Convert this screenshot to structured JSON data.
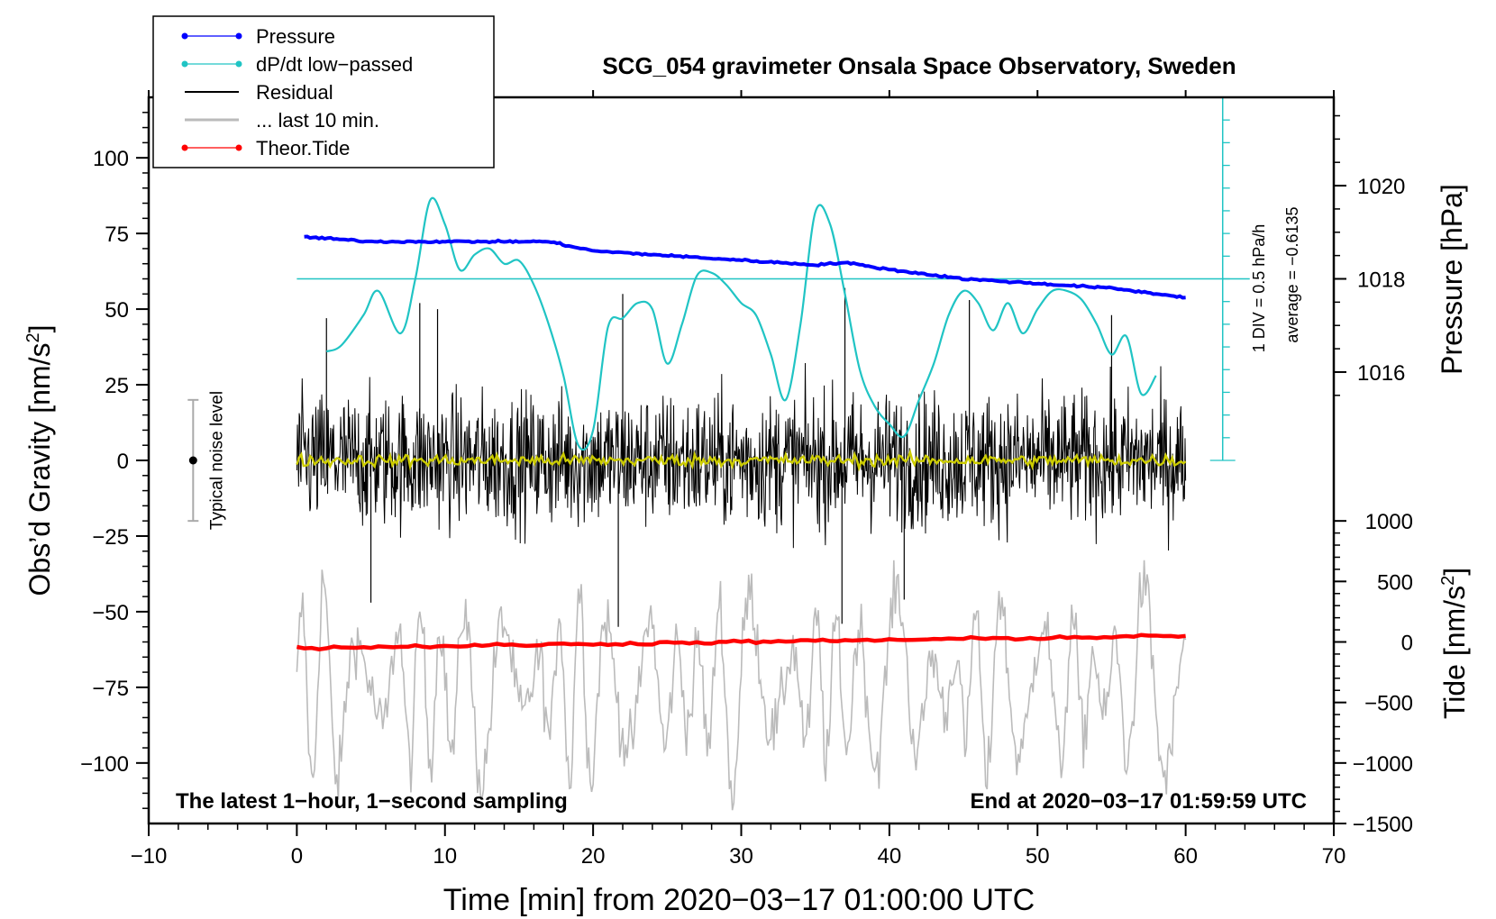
{
  "chart_data": {
    "type": "line",
    "title": "SCG_054 gravimeter Onsala Space Observatory, Sweden",
    "xlabel": "Time [min] from 2020−03−17 01:00:00 UTC",
    "ylabel_left": "Obs’d Gravity [nm/s",
    "ylabel_left_sup": "2",
    "ylabel_left_close": "]",
    "ylabel_right_pressure": "Pressure [hPa]",
    "ylabel_right_tide": "Tide [nm/s",
    "ylabel_right_tide_sup": "2",
    "ylabel_right_tide_close": "]",
    "xlim": [
      -10,
      70
    ],
    "ylim_gravity": [
      -120,
      120
    ],
    "xticks": [
      "−10",
      "0",
      "10",
      "20",
      "30",
      "40",
      "50",
      "60",
      "70"
    ],
    "xtick_values": [
      -10,
      0,
      10,
      20,
      30,
      40,
      50,
      60,
      70
    ],
    "yticks_gravity": [
      "100",
      "75",
      "50",
      "25",
      "0",
      "−25",
      "−50",
      "−75",
      "−100"
    ],
    "ytick_values_gravity": [
      100,
      75,
      50,
      25,
      0,
      -25,
      -50,
      -75,
      -100
    ],
    "pressure_axis": {
      "ticks": [
        "1020",
        "1018",
        "1016"
      ],
      "tick_values": [
        1020,
        1018,
        1016
      ],
      "ref_gravity": 60,
      "ref_hpa": 1018,
      "gravity_per_hpa": 15.4
    },
    "tide_axis": {
      "ticks": [
        "1000",
        "500",
        "0",
        "−500",
        "−1000",
        "−1500"
      ],
      "tick_values": [
        1000,
        500,
        0,
        -500,
        -1000,
        -1500
      ],
      "ref_gravity": -60,
      "gravity_per_unit": 0.04
    },
    "dpdt_scale": {
      "label1": "1 DIV = 0.5 hPa/h",
      "label2": "average = −0.6135",
      "x": 62.5,
      "y_top": 120,
      "y_bottom": 0,
      "divisions": 16,
      "baseline_gravity": 60
    },
    "noise_bar": {
      "label": "Typical noise level",
      "x": -7,
      "center": 0,
      "half_range": 20
    },
    "legend": [
      {
        "label": "Pressure",
        "color": "#0000ff",
        "marker": true
      },
      {
        "label": "dP/dt low−passed",
        "color": "#20c4c4",
        "marker": true
      },
      {
        "label": "Residual",
        "color": "#000000",
        "marker": false
      },
      {
        "label": "... last 10 min.",
        "color": "#bbbbbb",
        "marker": false
      },
      {
        "label": "Theor.Tide",
        "color": "#ff0000",
        "marker": true
      }
    ],
    "annotation_left": "The latest 1−hour, 1−second sampling",
    "annotation_right": "End at 2020−03−17 01:59:59 UTC",
    "series": [
      {
        "name": "Pressure",
        "color": "#0000ff",
        "x": [
          0.5,
          5,
          10,
          15,
          17,
          20,
          25,
          30,
          35,
          37,
          40,
          45,
          50,
          55,
          60
        ],
        "values": [
          1018.9,
          1018.8,
          1018.8,
          1018.8,
          1018.8,
          1018.6,
          1018.5,
          1018.4,
          1018.3,
          1018.35,
          1018.2,
          1018.0,
          1017.9,
          1017.8,
          1017.6
        ]
      },
      {
        "name": "dP/dt low-passed",
        "color": "#20c4c4",
        "x": [
          2,
          3,
          4.5,
          5.5,
          7,
          8,
          9,
          10,
          11,
          12,
          13,
          14,
          15,
          16,
          17,
          18,
          19,
          20,
          21,
          22,
          23,
          24,
          25,
          26,
          27,
          28,
          29,
          30,
          31,
          32,
          33,
          34,
          35,
          36,
          37,
          38,
          39,
          40,
          41,
          42,
          43,
          44,
          45,
          46,
          47,
          48,
          49,
          50,
          51,
          52,
          53,
          54,
          55,
          56,
          57,
          58
        ],
        "values": [
          36,
          38,
          48,
          56,
          42,
          60,
          86,
          78,
          63,
          68,
          70,
          65,
          66,
          58,
          45,
          28,
          5,
          10,
          44,
          47,
          52,
          50,
          32,
          45,
          61,
          62,
          58,
          52,
          48,
          35,
          20,
          45,
          82,
          78,
          55,
          30,
          18,
          12,
          8,
          20,
          32,
          48,
          56,
          52,
          43,
          52,
          42,
          50,
          56,
          56,
          53,
          45,
          35,
          41,
          22,
          28
        ]
      },
      {
        "name": "Residual",
        "color": "#000000",
        "x_range": [
          0,
          60
        ],
        "baseline": 0,
        "typical_amplitude": 20,
        "max_spikes": [
          {
            "x": 2.0,
            "value": 47
          },
          {
            "x": 8.3,
            "value": 52
          },
          {
            "x": 9.5,
            "value": 50
          },
          {
            "x": 22.0,
            "value": 55
          },
          {
            "x": 37.0,
            "value": 57
          },
          {
            "x": 45.4,
            "value": 53
          },
          {
            "x": 55.0,
            "value": 48
          },
          {
            "x": 21.7,
            "value": -55
          },
          {
            "x": 36.8,
            "value": -54
          },
          {
            "x": 41.0,
            "value": -46
          },
          {
            "x": 5.0,
            "value": -47
          }
        ]
      },
      {
        "name": "Residual smoothed",
        "color": "#cccc00",
        "x_range": [
          0,
          60
        ],
        "baseline": 0,
        "amplitude": 2
      },
      {
        "name": "... last 10 min.",
        "color": "#bbbbbb",
        "x_range": [
          0,
          60
        ],
        "center": -75,
        "min": -118,
        "max": -33
      },
      {
        "name": "Theor.Tide",
        "color": "#ff0000",
        "x": [
          0,
          60
        ],
        "values": [
          -62,
          -58
        ]
      }
    ]
  }
}
